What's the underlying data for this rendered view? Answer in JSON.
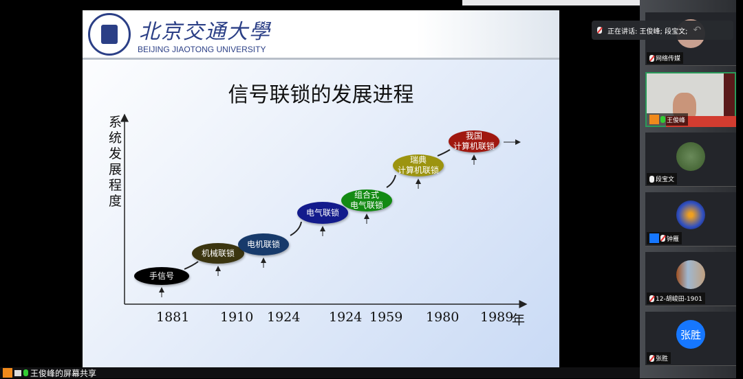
{
  "slide": {
    "logo_cn": "北京交通大學",
    "logo_en": "BEIJING JIAOTONG UNIVERSITY",
    "title": "信号联锁的发展进程",
    "y_axis_label": "系统发展程度",
    "x_axis_unit": "年",
    "stages": [
      {
        "line1": "手信号",
        "line2": "",
        "color": "#000000",
        "year": "1881"
      },
      {
        "line1": "机械联锁",
        "line2": "",
        "color": "#3b3510",
        "year": "1910"
      },
      {
        "line1": "电机联锁",
        "line2": "",
        "color": "#173a6b",
        "year": "1924"
      },
      {
        "line1": "电气联锁",
        "line2": "",
        "color": "#131b8c",
        "year": "1924"
      },
      {
        "line1": "组合式",
        "line2": "电气联锁",
        "color": "#138a13",
        "year": "1959"
      },
      {
        "line1": "瑞典",
        "line2": "计算机联锁",
        "color": "#9c9410",
        "year": "1980"
      },
      {
        "line1": "我国",
        "line2": "计算机联锁",
        "color": "#a01810",
        "year": "1989"
      }
    ]
  },
  "meeting": {
    "speaking_label": "正在讲话: 王俊峰; 段宝文;",
    "participants": [
      {
        "name": "网络传媒",
        "mic": "off"
      },
      {
        "name": "王俊峰",
        "mic": "on"
      },
      {
        "name": "段宝文",
        "mic": "idle"
      },
      {
        "name": "钟雁",
        "mic": "off"
      },
      {
        "name": "12-胡峻田-1901",
        "mic": "off"
      },
      {
        "name": "张胜",
        "mic": "off",
        "avatar_text": "张胜"
      }
    ],
    "share_label": "王俊峰的屏幕共享",
    "accent": "#1677ff"
  }
}
